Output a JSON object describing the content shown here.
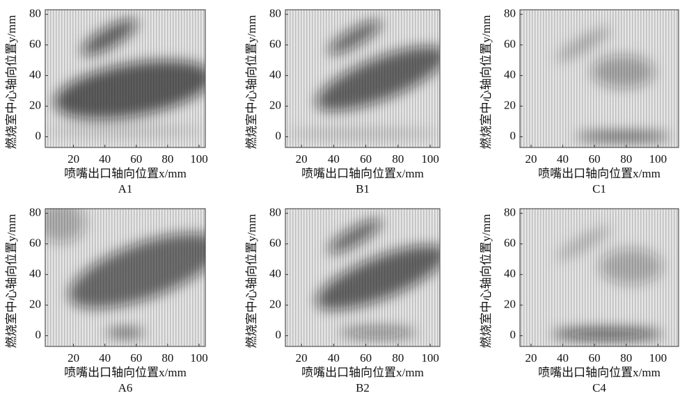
{
  "chart_data": [
    {
      "type": "heatmap",
      "title": "A1",
      "x_label": "喷嘴出口轴向位置x/mm",
      "y_label": "燃烧室中心轴向位置y/mm",
      "xlim": [
        2,
        104
      ],
      "ylim": [
        -7,
        83
      ],
      "xticks": [
        20,
        40,
        60,
        80,
        100
      ],
      "yticks": [
        0,
        20,
        40,
        60,
        80
      ]
    },
    {
      "type": "heatmap",
      "title": "B1",
      "x_label": "喷嘴出口轴向位置x/mm",
      "y_label": "燃烧室中心轴向位置y/mm",
      "xlim": [
        10,
        106
      ],
      "ylim": [
        -7,
        83
      ],
      "xticks": [
        20,
        40,
        60,
        80,
        100
      ],
      "yticks": [
        0,
        20,
        40,
        60,
        80
      ]
    },
    {
      "type": "heatmap",
      "title": "C1",
      "x_label": "喷嘴出口轴向位置x/mm",
      "y_label": "燃烧室中心轴向位置y/mm",
      "xlim": [
        13,
        113
      ],
      "ylim": [
        -7,
        83
      ],
      "xticks": [
        20,
        40,
        60,
        80,
        100
      ],
      "yticks": [
        0,
        20,
        40,
        60,
        80
      ]
    },
    {
      "type": "heatmap",
      "title": "A6",
      "x_label": "喷嘴出口轴向位置x/mm",
      "y_label": "燃烧室中心轴向位置y/mm",
      "xlim": [
        2,
        104
      ],
      "ylim": [
        -7,
        83
      ],
      "xticks": [
        20,
        40,
        60,
        80,
        100
      ],
      "yticks": [
        0,
        20,
        40,
        60,
        80
      ]
    },
    {
      "type": "heatmap",
      "title": "B2",
      "x_label": "喷嘴出口轴向位置x/mm",
      "y_label": "燃烧室中心轴向位置y/mm",
      "xlim": [
        10,
        106
      ],
      "ylim": [
        -7,
        83
      ],
      "xticks": [
        20,
        40,
        60,
        80,
        100
      ],
      "yticks": [
        0,
        20,
        40,
        60,
        80
      ]
    },
    {
      "type": "heatmap",
      "title": "C4",
      "x_label": "喷嘴出口轴向位置x/mm",
      "y_label": "燃烧室中心轴向位置y/mm",
      "xlim": [
        13,
        113
      ],
      "ylim": [
        -7,
        83
      ],
      "xticks": [
        20,
        40,
        60,
        80,
        100
      ],
      "yticks": [
        0,
        20,
        40,
        60,
        80
      ]
    }
  ]
}
